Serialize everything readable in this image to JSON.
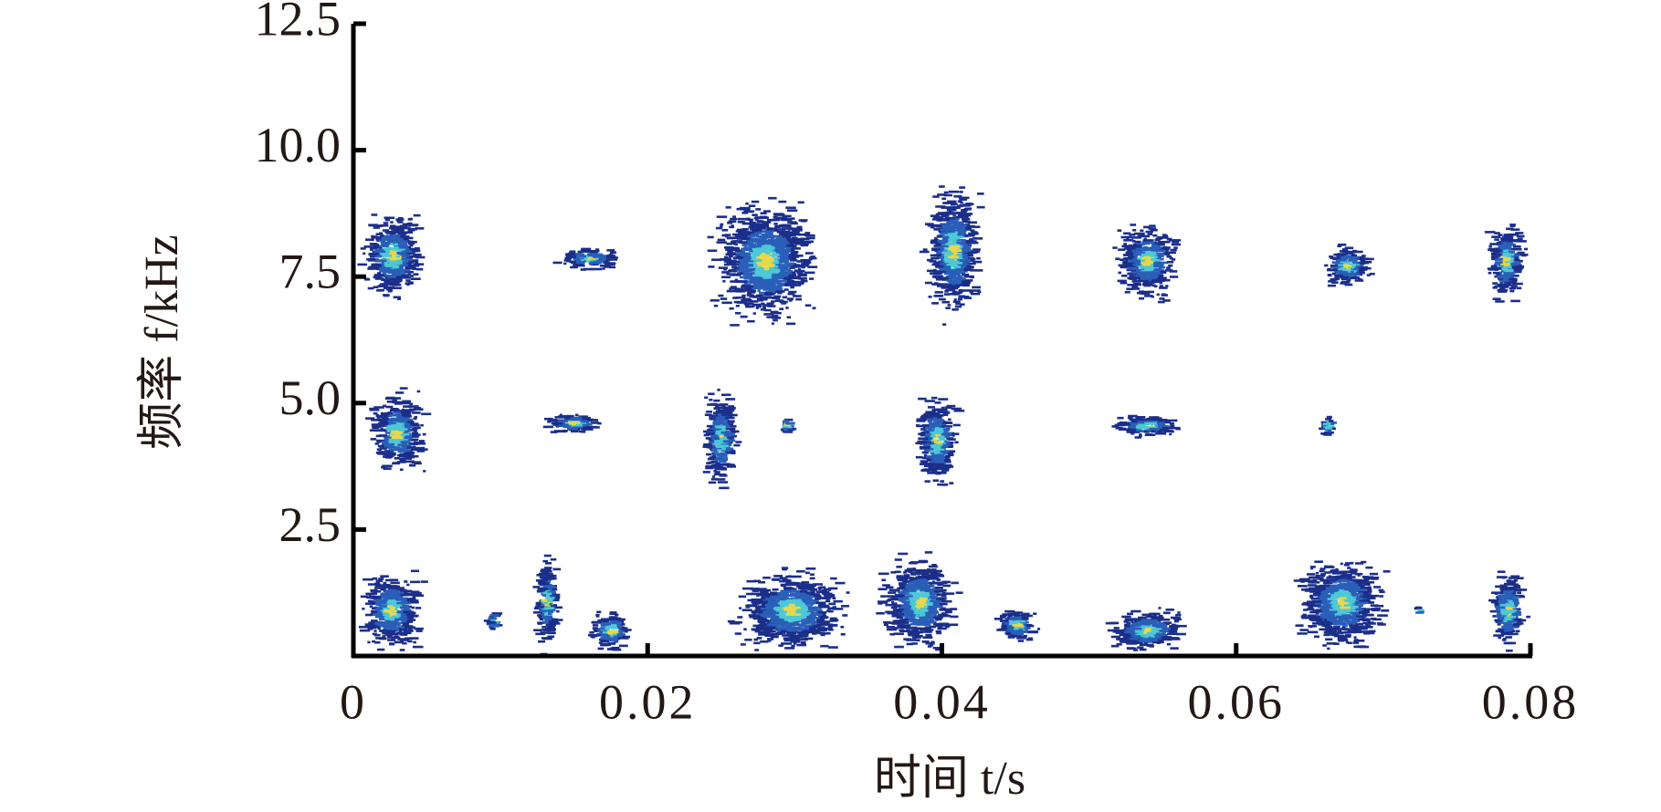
{
  "chart_data": {
    "type": "spectrogram",
    "xlabel": "时间 t/s",
    "ylabel": "频率 f/kHz",
    "xlim": [
      0,
      0.08
    ],
    "ylim": [
      0,
      12.5
    ],
    "xticks": [
      0,
      0.02,
      0.04,
      0.06,
      0.08
    ],
    "yticks": [
      {
        "value": 2.5,
        "label": "2.5"
      },
      {
        "value": 5,
        "label": "5.0"
      },
      {
        "value": 7.5,
        "label": "7.5"
      },
      {
        "value": 10,
        "label": "10.0"
      },
      {
        "value": 12.5,
        "label": "12.5"
      }
    ],
    "colors": [
      "#1b2e8a",
      "#2a5fb8",
      "#4cc8d6",
      "#e6d84a"
    ],
    "x": [
      0.0027,
      0.016,
      0.028,
      0.0408,
      0.054,
      0.0676,
      0.0784,
      0.003,
      0.015,
      0.025,
      0.0295,
      0.0397,
      0.054,
      0.0663,
      0.0026,
      0.0096,
      0.0132,
      0.0175,
      0.0298,
      0.0385,
      0.0451,
      0.054,
      0.0672,
      0.0725,
      0.0785
    ],
    "x_width": [
      0.0047,
      0.005,
      0.008,
      0.0042,
      0.005,
      0.004,
      0.003,
      0.0044,
      0.0048,
      0.0028,
      0.001,
      0.0033,
      0.0058,
      0.0013,
      0.005,
      0.001,
      0.0018,
      0.0033,
      0.009,
      0.006,
      0.0033,
      0.0062,
      0.0069,
      0.0005,
      0.0028
    ],
    "y": [
      7.9,
      7.85,
      7.8,
      8,
      7.8,
      7.7,
      7.8,
      4.4,
      4.6,
      4.3,
      4.55,
      4.25,
      4.55,
      4.55,
      0.9,
      0.7,
      1.05,
      0.5,
      0.9,
      1.05,
      0.6,
      0.5,
      1.05,
      0.9,
      0.9
    ],
    "y_height": [
      2,
      0.5,
      2.8,
      3,
      1.7,
      1,
      1.8,
      1.9,
      0.5,
      2.2,
      0.5,
      2.1,
      0.5,
      0.5,
      1.8,
      0.6,
      2.1,
      1,
      1.8,
      2.1,
      0.8,
      1,
      2.1,
      0.2,
      1.8
    ]
  }
}
